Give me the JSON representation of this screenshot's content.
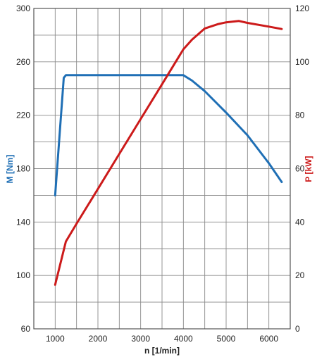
{
  "chart_data": {
    "type": "line",
    "xlabel": "n [1/min]",
    "xlim": [
      500,
      6500
    ],
    "x_ticks": [
      "1000",
      "2000",
      "3000",
      "4000",
      "5000",
      "6000"
    ],
    "x_tick_values": [
      1000,
      2000,
      3000,
      4000,
      5000,
      6000
    ],
    "x_grid_values": [
      500,
      1000,
      1500,
      2000,
      2500,
      3000,
      3500,
      4000,
      4500,
      5000,
      5500,
      6000,
      6500
    ],
    "left_axis": {
      "label": "M [Nm]",
      "color": "#1f6fb5",
      "ylim": [
        60,
        300
      ],
      "ticks": [
        "60",
        "100",
        "140",
        "180",
        "220",
        "260",
        "300"
      ],
      "tick_values": [
        60,
        100,
        140,
        180,
        220,
        260,
        300
      ]
    },
    "right_axis": {
      "label": "P [kW]",
      "color": "#cc1a1a",
      "ylim": [
        0,
        120
      ],
      "ticks": [
        "0",
        "20",
        "40",
        "60",
        "80",
        "100",
        "120"
      ],
      "tick_values": [
        0,
        20,
        40,
        60,
        80,
        100,
        120
      ]
    },
    "y_grid_values": [
      60,
      80,
      100,
      120,
      140,
      160,
      180,
      200,
      220,
      240,
      260,
      280,
      300
    ],
    "grid": true,
    "series": [
      {
        "name": "M [Nm]",
        "axis": "left",
        "color": "#1f6fb5",
        "x": [
          1000,
          1200,
          1250,
          1500,
          2000,
          3000,
          4000,
          4200,
          4500,
          5000,
          5500,
          6000,
          6300
        ],
        "y": [
          160,
          248,
          250,
          250,
          250,
          250,
          250,
          246,
          238,
          222,
          205,
          184,
          170
        ]
      },
      {
        "name": "P [kW]",
        "axis": "right",
        "color": "#cc1a1a",
        "x": [
          1000,
          1250,
          1500,
          2000,
          2500,
          3000,
          3500,
          4000,
          4200,
          4500,
          4800,
          5000,
          5300,
          5500,
          6000,
          6300
        ],
        "y": [
          16.5,
          32.7,
          39.4,
          52.4,
          65.5,
          78.6,
          91.6,
          104.7,
          108.3,
          112.5,
          114.1,
          114.8,
          115.3,
          114.6,
          113.2,
          112.3
        ]
      }
    ]
  }
}
